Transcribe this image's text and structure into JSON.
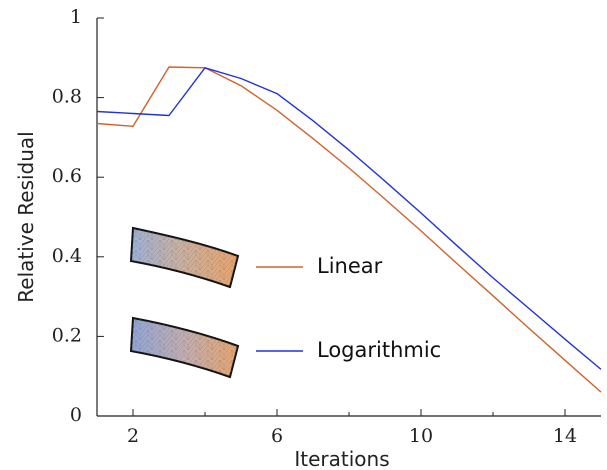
{
  "chart_data": {
    "type": "line",
    "xlabel": "Iterations",
    "ylabel": "Relative Residual",
    "xlim": [
      1,
      15
    ],
    "ylim": [
      0,
      1
    ],
    "xticks": [
      2,
      6,
      10,
      14
    ],
    "xticks_minor": [
      4,
      8,
      12
    ],
    "yticks": [
      0,
      0.2,
      0.4,
      0.6,
      0.8,
      1
    ],
    "ytick_labels": [
      "0",
      "0.2",
      "0.4",
      "0.6",
      "0.8",
      "1"
    ],
    "grid": false,
    "legend_placement": "center-left",
    "series": [
      {
        "name": "Linear",
        "color": "#d2622a",
        "x": [
          1,
          2,
          3,
          4,
          5,
          6,
          7,
          8,
          9,
          10,
          11,
          12,
          13,
          14,
          15
        ],
        "y": [
          0.735,
          0.728,
          0.877,
          0.875,
          0.83,
          0.768,
          0.697,
          0.623,
          0.545,
          0.465,
          0.383,
          0.302,
          0.22,
          0.14,
          0.06
        ]
      },
      {
        "name": "Logarithmic",
        "color": "#2432d8",
        "x": [
          1,
          2,
          3,
          4,
          5,
          6,
          7,
          8,
          9,
          10,
          11,
          12,
          13,
          14,
          15
        ],
        "y": [
          0.765,
          0.76,
          0.755,
          0.875,
          0.848,
          0.81,
          0.742,
          0.668,
          0.59,
          0.51,
          0.428,
          0.347,
          0.27,
          0.193,
          0.117
        ]
      }
    ]
  }
}
